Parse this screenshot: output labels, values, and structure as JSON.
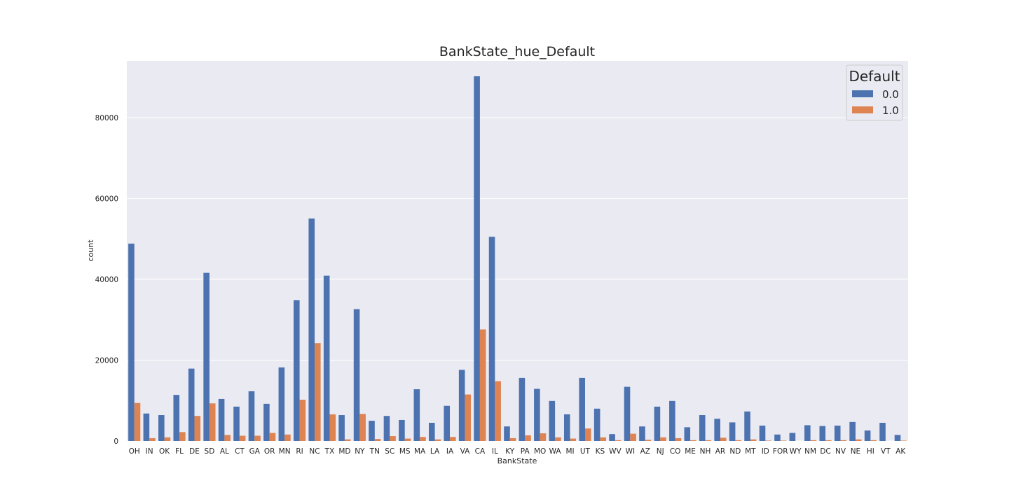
{
  "chart_data": {
    "type": "bar",
    "title": "BankState_hue_Default",
    "xlabel": "BankState",
    "ylabel": "count",
    "ylim": [
      0,
      94000
    ],
    "yticks": [
      0,
      20000,
      40000,
      60000,
      80000
    ],
    "grid": true,
    "legend": {
      "title": "Default",
      "position": "top-right"
    },
    "categories": [
      "OH",
      "IN",
      "OK",
      "FL",
      "DE",
      "SD",
      "AL",
      "CT",
      "GA",
      "OR",
      "MN",
      "RI",
      "NC",
      "TX",
      "MD",
      "NY",
      "TN",
      "SC",
      "MS",
      "MA",
      "LA",
      "IA",
      "VA",
      "CA",
      "IL",
      "KY",
      "PA",
      "MO",
      "WA",
      "MI",
      "UT",
      "KS",
      "WV",
      "WI",
      "AZ",
      "NJ",
      "CO",
      "ME",
      "NH",
      "AR",
      "ND",
      "MT",
      "ID",
      "FOR",
      "WY",
      "NM",
      "DC",
      "NV",
      "NE",
      "HI",
      "VT",
      "AK"
    ],
    "series": [
      {
        "name": "0.0",
        "color": "#4c72b0",
        "values": [
          48800,
          6800,
          6400,
          11400,
          17900,
          41600,
          10400,
          8500,
          12300,
          9200,
          18200,
          34800,
          55000,
          40900,
          6400,
          32600,
          5000,
          6200,
          5200,
          12800,
          4500,
          8700,
          17600,
          90200,
          50500,
          3600,
          15600,
          12900,
          9900,
          6600,
          15600,
          8000,
          1700,
          13400,
          3600,
          8500,
          9900,
          3400,
          6400,
          5500,
          4600,
          7300,
          3800,
          1600,
          2000,
          3900,
          3700,
          3800,
          4700,
          2600,
          4500,
          1500
        ]
      },
      {
        "name": "1.0",
        "color": "#dd8452",
        "values": [
          9400,
          700,
          900,
          2200,
          6200,
          9300,
          1500,
          1300,
          1300,
          2000,
          1600,
          10200,
          24200,
          6600,
          400,
          6700,
          500,
          1200,
          600,
          1000,
          400,
          1000,
          11500,
          27600,
          14800,
          700,
          1400,
          1900,
          900,
          600,
          3100,
          900,
          200,
          1800,
          300,
          900,
          700,
          200,
          200,
          800,
          200,
          400,
          100,
          100,
          0,
          200,
          200,
          200,
          400,
          200,
          0,
          100
        ]
      }
    ]
  }
}
